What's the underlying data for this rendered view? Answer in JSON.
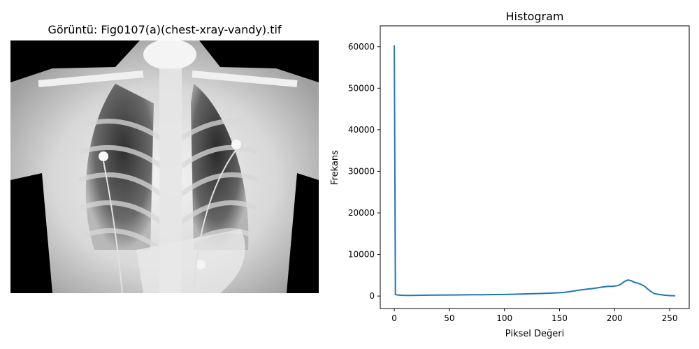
{
  "image_panel": {
    "title": "Görüntü: Fig0107(a)(chest-xray-vandy).tif"
  },
  "chart_data": {
    "type": "line",
    "title": "Histogram",
    "xlabel": "Piksel Değeri",
    "ylabel": "Frekans",
    "xlim": [
      -12.75,
      267.75
    ],
    "ylim": [
      -3000,
      65000
    ],
    "xticks": [
      0,
      50,
      100,
      150,
      200,
      250
    ],
    "yticks": [
      0,
      10000,
      20000,
      30000,
      40000,
      50000,
      60000
    ],
    "grid": false,
    "line_color": "#1f77b4",
    "x": [
      0,
      1,
      3,
      5,
      10,
      15,
      20,
      30,
      40,
      50,
      60,
      70,
      80,
      90,
      100,
      110,
      120,
      130,
      140,
      150,
      155,
      160,
      165,
      170,
      175,
      180,
      185,
      190,
      195,
      198,
      200,
      203,
      206,
      209,
      212,
      215,
      218,
      221,
      224,
      227,
      230,
      233,
      236,
      240,
      245,
      250,
      255
    ],
    "y": [
      60300,
      400,
      250,
      200,
      150,
      160,
      170,
      200,
      230,
      250,
      280,
      300,
      320,
      350,
      380,
      450,
      520,
      600,
      680,
      800,
      900,
      1100,
      1300,
      1500,
      1650,
      1800,
      2000,
      2200,
      2350,
      2300,
      2400,
      2500,
      2900,
      3500,
      3850,
      3700,
      3300,
      3100,
      2800,
      2400,
      1700,
      1100,
      600,
      400,
      200,
      100,
      50
    ]
  }
}
